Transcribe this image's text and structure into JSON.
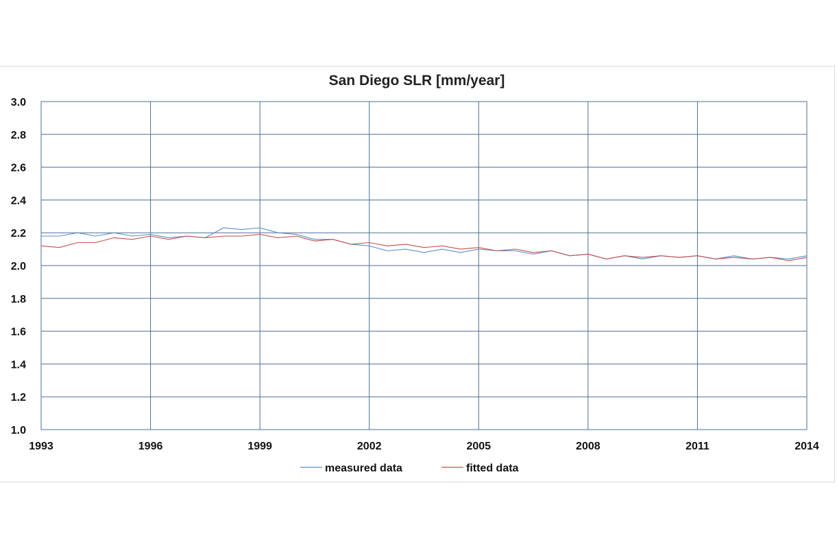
{
  "chart_data": {
    "type": "line",
    "title": "San Diego SLR [mm/year]",
    "xlabel": "",
    "ylabel": "",
    "xlim": [
      1993,
      2014
    ],
    "ylim": [
      1.0,
      3.0
    ],
    "x_ticks": [
      "1993",
      "1996",
      "1999",
      "2002",
      "2005",
      "2008",
      "2011",
      "2014"
    ],
    "y_ticks": [
      "1.0",
      "1.2",
      "1.4",
      "1.6",
      "1.8",
      "2.0",
      "2.2",
      "2.4",
      "2.6",
      "2.8",
      "3.0"
    ],
    "grid": true,
    "legend_position": "bottom",
    "colors": {
      "measured data": "#5b8fc9",
      "fitted data": "#c0504d",
      "grid": "#4f6e95"
    },
    "series": [
      {
        "name": "measured data",
        "x": [
          1993.0,
          1993.5,
          1994.0,
          1994.5,
          1995.0,
          1995.5,
          1996.0,
          1996.5,
          1997.0,
          1997.5,
          1998.0,
          1998.5,
          1999.0,
          1999.5,
          2000.0,
          2000.5,
          2001.0,
          2001.5,
          2002.0,
          2002.5,
          2003.0,
          2003.5,
          2004.0,
          2004.5,
          2005.0,
          2005.5,
          2006.0,
          2006.5,
          2007.0,
          2007.5,
          2008.0,
          2008.5,
          2009.0,
          2009.5,
          2010.0,
          2010.5,
          2011.0,
          2011.5,
          2012.0,
          2012.5,
          2013.0,
          2013.5,
          2014.0
        ],
        "values": [
          2.18,
          2.18,
          2.2,
          2.18,
          2.2,
          2.18,
          2.19,
          2.17,
          2.18,
          2.17,
          2.23,
          2.22,
          2.23,
          2.2,
          2.19,
          2.16,
          2.16,
          2.13,
          2.12,
          2.09,
          2.1,
          2.08,
          2.1,
          2.08,
          2.1,
          2.09,
          2.09,
          2.07,
          2.09,
          2.06,
          2.07,
          2.04,
          2.06,
          2.04,
          2.06,
          2.05,
          2.06,
          2.04,
          2.06,
          2.04,
          2.05,
          2.04,
          2.06
        ]
      },
      {
        "name": "fitted data",
        "x": [
          1993.0,
          1993.5,
          1994.0,
          1994.5,
          1995.0,
          1995.5,
          1996.0,
          1996.5,
          1997.0,
          1997.5,
          1998.0,
          1998.5,
          1999.0,
          1999.5,
          2000.0,
          2000.5,
          2001.0,
          2001.5,
          2002.0,
          2002.5,
          2003.0,
          2003.5,
          2004.0,
          2004.5,
          2005.0,
          2005.5,
          2006.0,
          2006.5,
          2007.0,
          2007.5,
          2008.0,
          2008.5,
          2009.0,
          2009.5,
          2010.0,
          2010.5,
          2011.0,
          2011.5,
          2012.0,
          2012.5,
          2013.0,
          2013.5,
          2014.0
        ],
        "values": [
          2.12,
          2.11,
          2.14,
          2.14,
          2.17,
          2.16,
          2.18,
          2.16,
          2.18,
          2.17,
          2.18,
          2.18,
          2.19,
          2.17,
          2.18,
          2.15,
          2.16,
          2.13,
          2.14,
          2.12,
          2.13,
          2.11,
          2.12,
          2.1,
          2.11,
          2.09,
          2.1,
          2.08,
          2.09,
          2.06,
          2.07,
          2.04,
          2.06,
          2.05,
          2.06,
          2.05,
          2.06,
          2.04,
          2.05,
          2.04,
          2.05,
          2.03,
          2.05
        ]
      }
    ]
  }
}
